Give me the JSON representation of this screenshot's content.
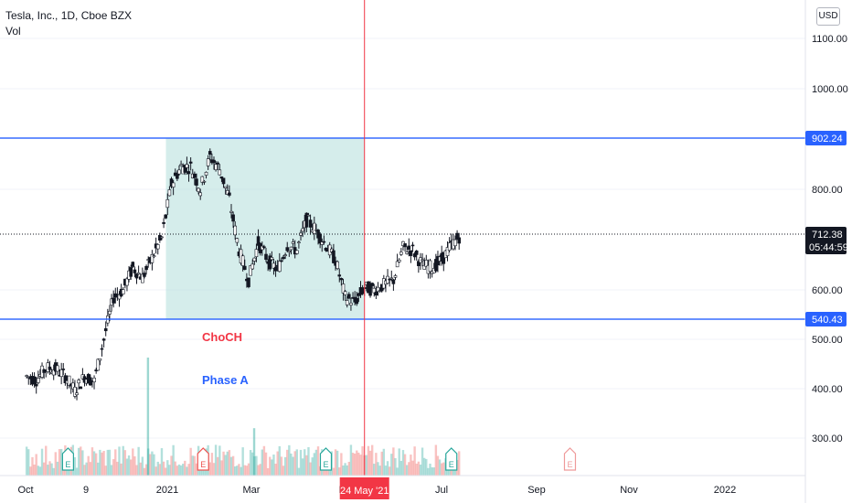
{
  "header": {
    "symbol_line": "Tesla, Inc., 1D, Cboe BZX",
    "volume_label": "Vol",
    "currency": "USD"
  },
  "colors": {
    "up": "#26a69a",
    "down": "#ef5350",
    "line_blue": "#2962ff",
    "crosshair_red": "#f23645",
    "zone_fill": "#b2dfdb"
  },
  "annotations": {
    "choch": "ChoCH",
    "phase": "Phase A"
  },
  "crosshair": {
    "date_label": "24 May '21"
  },
  "chart_data": {
    "type": "candlestick",
    "y_axis": {
      "ticks": [
        "1100.00",
        "1000.00",
        "800.00",
        "600.00",
        "500.00",
        "400.00",
        "300.00"
      ],
      "tick_values": [
        1100,
        1000,
        800,
        600,
        500,
        400,
        300
      ],
      "range": [
        220,
        1180
      ]
    },
    "x_axis": {
      "ticks": [
        "Oct",
        "9",
        "2021",
        "Mar",
        "May",
        "Jul",
        "Sep",
        "Nov",
        "2022"
      ]
    },
    "price_labels": [
      {
        "text": "902.24",
        "value": 902.24,
        "kind": "level"
      },
      {
        "text": "712.38",
        "value": 712.38,
        "kind": "last",
        "countdown": "05:44:59"
      },
      {
        "text": "540.43",
        "value": 540.43,
        "kind": "level"
      }
    ],
    "horizontal_levels": [
      902.24,
      540.43
    ],
    "close_path": [
      [
        "2020-09-21",
        425
      ],
      [
        "2020-09-28",
        418
      ],
      [
        "2020-10-05",
        442
      ],
      [
        "2020-10-12",
        440
      ],
      [
        "2020-10-19",
        425
      ],
      [
        "2020-10-26",
        395
      ],
      [
        "2020-11-02",
        425
      ],
      [
        "2020-11-09",
        415
      ],
      [
        "2020-11-16",
        500
      ],
      [
        "2020-11-23",
        585
      ],
      [
        "2020-11-30",
        600
      ],
      [
        "2020-12-07",
        645
      ],
      [
        "2020-12-14",
        625
      ],
      [
        "2020-12-21",
        665
      ],
      [
        "2020-12-28",
        705
      ],
      [
        "2021-01-04",
        810
      ],
      [
        "2021-01-11",
        845
      ],
      [
        "2021-01-18",
        845
      ],
      [
        "2021-01-25",
        800
      ],
      [
        "2021-02-01",
        865
      ],
      [
        "2021-02-08",
        840
      ],
      [
        "2021-02-15",
        780
      ],
      [
        "2021-02-22",
        680
      ],
      [
        "2021-03-01",
        620
      ],
      [
        "2021-03-08",
        695
      ],
      [
        "2021-03-15",
        660
      ],
      [
        "2021-03-22",
        640
      ],
      [
        "2021-03-29",
        690
      ],
      [
        "2021-04-05",
        680
      ],
      [
        "2021-04-12",
        740
      ],
      [
        "2021-04-19",
        720
      ],
      [
        "2021-04-26",
        690
      ],
      [
        "2021-05-03",
        660
      ],
      [
        "2021-05-10",
        585
      ],
      [
        "2021-05-17",
        575
      ],
      [
        "2021-05-24",
        605
      ],
      [
        "2021-05-31",
        600
      ],
      [
        "2021-06-07",
        610
      ],
      [
        "2021-06-14",
        620
      ],
      [
        "2021-06-21",
        685
      ],
      [
        "2021-06-28",
        680
      ],
      [
        "2021-07-05",
        650
      ],
      [
        "2021-07-12",
        645
      ],
      [
        "2021-07-19",
        660
      ],
      [
        "2021-07-26",
        690
      ],
      [
        "2021-08-02",
        712
      ]
    ],
    "volume_spikes": [
      [
        "2020-12-18",
        463
      ],
      [
        "2021-03-05",
        320
      ]
    ]
  }
}
